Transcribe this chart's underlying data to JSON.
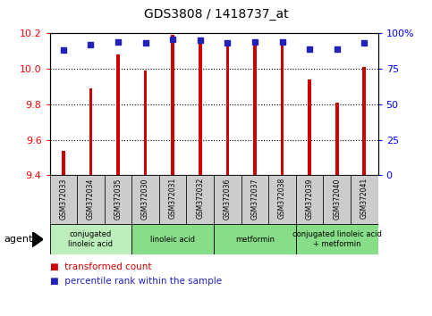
{
  "title": "GDS3808 / 1418737_at",
  "categories": [
    "GSM372033",
    "GSM372034",
    "GSM372035",
    "GSM372030",
    "GSM372031",
    "GSM372032",
    "GSM372036",
    "GSM372037",
    "GSM372038",
    "GSM372039",
    "GSM372040",
    "GSM372041"
  ],
  "red_values": [
    9.54,
    9.89,
    10.08,
    9.99,
    10.19,
    10.17,
    10.14,
    10.13,
    10.14,
    9.94,
    9.81,
    10.01
  ],
  "blue_values": [
    88,
    92,
    94,
    93,
    96,
    95,
    93,
    94,
    94,
    89,
    89,
    93
  ],
  "y_min": 9.4,
  "y_max": 10.2,
  "y_ticks": [
    9.4,
    9.6,
    9.8,
    10.0,
    10.2
  ],
  "y2_ticks": [
    0,
    25,
    50,
    75,
    100
  ],
  "bar_color": "#cc0000",
  "dot_color": "#2222bb",
  "agent_groups": [
    {
      "label": "conjugated\nlinoleic acid",
      "start": 0,
      "end": 3,
      "color": "#bbeebb"
    },
    {
      "label": "linoleic acid",
      "start": 3,
      "end": 6,
      "color": "#88dd88"
    },
    {
      "label": "metformin",
      "start": 6,
      "end": 9,
      "color": "#88dd88"
    },
    {
      "label": "conjugated linoleic acid\n+ metformin",
      "start": 9,
      "end": 12,
      "color": "#88dd88"
    }
  ],
  "legend_items": [
    {
      "label": "transformed count",
      "color": "#cc0000"
    },
    {
      "label": "percentile rank within the sample",
      "color": "#2222bb"
    }
  ],
  "bar_bottom": 9.4,
  "bar_width": 0.12,
  "xtick_bg": "#cccccc",
  "grid_lines": [
    9.6,
    9.8,
    10.0
  ]
}
